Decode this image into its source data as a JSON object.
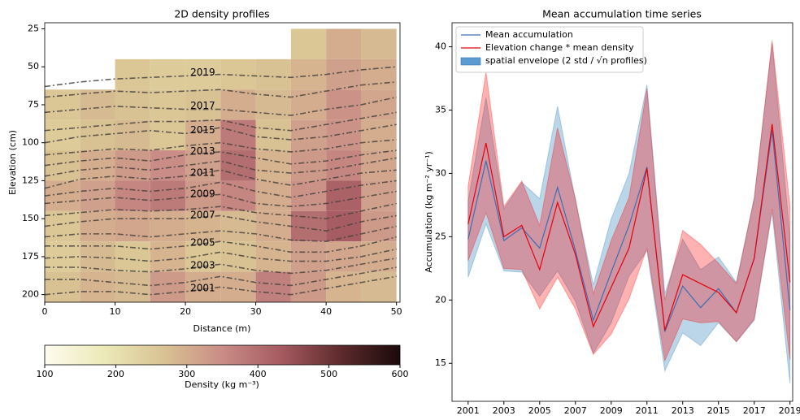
{
  "chart_data": [
    {
      "type": "heatmap",
      "title": "2D density profiles",
      "xlabel": "Distance (m)",
      "ylabel": "Elevation (cm)",
      "xlim": [
        0,
        50.5
      ],
      "ylim": [
        205,
        21
      ],
      "xticks": [
        0,
        10,
        20,
        30,
        40,
        50
      ],
      "yticks": [
        25,
        50,
        75,
        100,
        125,
        150,
        175,
        200
      ],
      "x_edges": [
        0,
        5,
        10,
        15,
        20,
        25,
        30,
        35,
        40,
        45,
        50
      ],
      "y_edges": [
        25,
        45,
        65,
        85,
        105,
        125,
        145,
        165,
        185,
        205
      ],
      "values": [
        [
          null,
          null,
          null,
          null,
          null,
          null,
          null,
          260,
          300,
          280
        ],
        [
          null,
          null,
          260,
          250,
          250,
          260,
          270,
          290,
          320,
          300
        ],
        [
          260,
          280,
          270,
          260,
          270,
          300,
          280,
          300,
          340,
          310
        ],
        [
          250,
          270,
          280,
          260,
          300,
          380,
          270,
          320,
          340,
          300
        ],
        [
          270,
          300,
          330,
          350,
          320,
          400,
          290,
          330,
          360,
          310
        ],
        [
          300,
          320,
          360,
          380,
          330,
          360,
          300,
          340,
          420,
          320
        ],
        [
          260,
          300,
          310,
          300,
          290,
          280,
          300,
          400,
          430,
          330
        ],
        [
          250,
          280,
          260,
          290,
          260,
          270,
          290,
          320,
          310,
          300
        ],
        [
          270,
          290,
          280,
          330,
          300,
          300,
          370,
          330,
          290,
          280
        ]
      ],
      "colormap": [
        "#fdfcef",
        "#ece9b8",
        "#d9c393",
        "#c98c86",
        "#a55a60",
        "#5e2a2c",
        "#1a0a0a"
      ],
      "clim": [
        100,
        600
      ],
      "colorbar_ticks": [
        100,
        200,
        300,
        400,
        500,
        600
      ],
      "colorbar_label": "Density (kg m⁻³)",
      "isochrones": {
        "color": "#4a4440",
        "x": [
          0,
          5,
          10,
          15,
          20,
          25,
          30,
          35,
          40,
          45,
          50
        ],
        "lines": [
          {
            "name": "2019",
            "values": [
              63,
              60,
              58,
              57,
              56,
              55,
              56,
              57,
              55,
              52,
              50
            ]
          },
          {
            "values": [
              70,
              68,
              66,
              67,
              66,
              65,
              68,
              70,
              66,
              62,
              60
            ]
          },
          {
            "name": "2017",
            "values": [
              80,
              78,
              76,
              77,
              78,
              78,
              80,
              82,
              78,
              75,
              70
            ]
          },
          {
            "values": [
              92,
              90,
              88,
              86,
              86,
              85,
              90,
              92,
              88,
              84,
              80
            ]
          },
          {
            "name": "2015",
            "values": [
              100,
              96,
              94,
              92,
              94,
              90,
              96,
              98,
              96,
              92,
              88
            ]
          },
          {
            "values": [
              108,
              106,
              104,
              105,
              102,
              100,
              104,
              106,
              104,
              100,
              98
            ]
          },
          {
            "name": "2013",
            "values": [
              115,
              112,
              110,
              112,
              108,
              106,
              110,
              114,
              112,
              108,
              105
            ]
          },
          {
            "values": [
              122,
              118,
              116,
              118,
              115,
              112,
              118,
              120,
              118,
              114,
              110
            ]
          },
          {
            "name": "2011",
            "values": [
              130,
              124,
              122,
              124,
              122,
              118,
              124,
              128,
              124,
              120,
              118
            ]
          },
          {
            "values": [
              135,
              132,
              130,
              132,
              130,
              126,
              132,
              136,
              132,
              128,
              125
            ]
          },
          {
            "name": "2009",
            "values": [
              140,
              138,
              136,
              138,
              136,
              134,
              140,
              142,
              140,
              136,
              132
            ]
          },
          {
            "values": [
              148,
              146,
              144,
              145,
              144,
              142,
              146,
              148,
              150,
              145,
              140
            ]
          },
          {
            "name": "2007",
            "values": [
              155,
              152,
              150,
              150,
              150,
              148,
              152,
              155,
              158,
              152,
              148
            ]
          },
          {
            "values": [
              162,
              160,
              160,
              162,
              160,
              158,
              160,
              164,
              165,
              160,
              155
            ]
          },
          {
            "name": "2005",
            "values": [
              168,
              168,
              168,
              170,
              168,
              165,
              168,
              172,
              172,
              168,
              162
            ]
          },
          {
            "values": [
              176,
              175,
              176,
              178,
              176,
              172,
              176,
              178,
              178,
              175,
              170
            ]
          },
          {
            "name": "2003",
            "values": [
              182,
              182,
              184,
              185,
              183,
              180,
              184,
              186,
              184,
              180,
              176
            ]
          },
          {
            "values": [
              190,
              190,
              192,
              194,
              192,
              188,
              192,
              194,
              190,
              186,
              182
            ]
          },
          {
            "name": "2001",
            "values": [
              200,
              198,
              198,
              200,
              198,
              195,
              198,
              200,
              196,
              192,
              188
            ]
          }
        ]
      }
    },
    {
      "type": "line",
      "title": "Mean accumulation time series",
      "ylabel": "Accumulation (kg m⁻² yr⁻¹)",
      "x": [
        2001,
        2002,
        2003,
        2004,
        2005,
        2006,
        2007,
        2008,
        2009,
        2010,
        2011,
        2012,
        2013,
        2014,
        2015,
        2016,
        2017,
        2018,
        2019
      ],
      "xlim": [
        2000.1,
        2019.15
      ],
      "ylim": [
        12,
        41.9
      ],
      "xticks": [
        2001,
        2003,
        2005,
        2007,
        2009,
        2011,
        2013,
        2015,
        2017,
        2019
      ],
      "yticks": [
        15,
        20,
        25,
        30,
        35,
        40
      ],
      "legend": "upper left",
      "envelope": {
        "name": "spatial envelope (2 std / √n profiles)",
        "color": "#5b9bd1"
      },
      "series": [
        {
          "name": "Mean accumulation",
          "color": "#3b6fb6",
          "band_color": "#1f77b4",
          "values": [
            24.8,
            31.0,
            24.7,
            25.7,
            24.1,
            28.9,
            23.9,
            18.4,
            22.2,
            25.9,
            30.5,
            17.5,
            21.1,
            19.4,
            20.9,
            19.0,
            23.3,
            33.4,
            19.2
          ],
          "lower": [
            21.8,
            26.0,
            22.3,
            22.2,
            20.3,
            22.3,
            19.9,
            15.8,
            18.2,
            21.9,
            23.9,
            14.4,
            17.4,
            16.4,
            18.2,
            16.7,
            18.4,
            26.9,
            13.4
          ],
          "upper": [
            27.8,
            36.0,
            27.2,
            29.3,
            28.0,
            35.3,
            27.9,
            21.2,
            26.4,
            30.0,
            37.0,
            20.5,
            24.8,
            22.4,
            23.4,
            21.4,
            28.1,
            40.3,
            25.0
          ]
        },
        {
          "name": "Elevation change * mean density",
          "color": "#e8000b",
          "band_color": "#ff0000",
          "values": [
            26.0,
            32.4,
            25.0,
            25.9,
            22.4,
            27.7,
            23.6,
            17.9,
            21.0,
            24.1,
            30.4,
            17.6,
            22.0,
            21.3,
            20.6,
            19.0,
            23.3,
            33.9,
            21.4
          ],
          "lower": [
            23.1,
            26.9,
            22.5,
            22.4,
            19.3,
            21.8,
            19.3,
            15.7,
            17.3,
            20.1,
            24.1,
            15.2,
            18.5,
            18.2,
            18.3,
            16.7,
            18.5,
            27.2,
            15.3
          ],
          "upper": [
            29.0,
            38.0,
            27.4,
            29.4,
            25.9,
            33.6,
            28.0,
            20.5,
            24.7,
            28.1,
            36.7,
            20.0,
            25.5,
            24.4,
            22.9,
            21.3,
            28.0,
            40.5,
            27.4
          ]
        }
      ]
    }
  ]
}
